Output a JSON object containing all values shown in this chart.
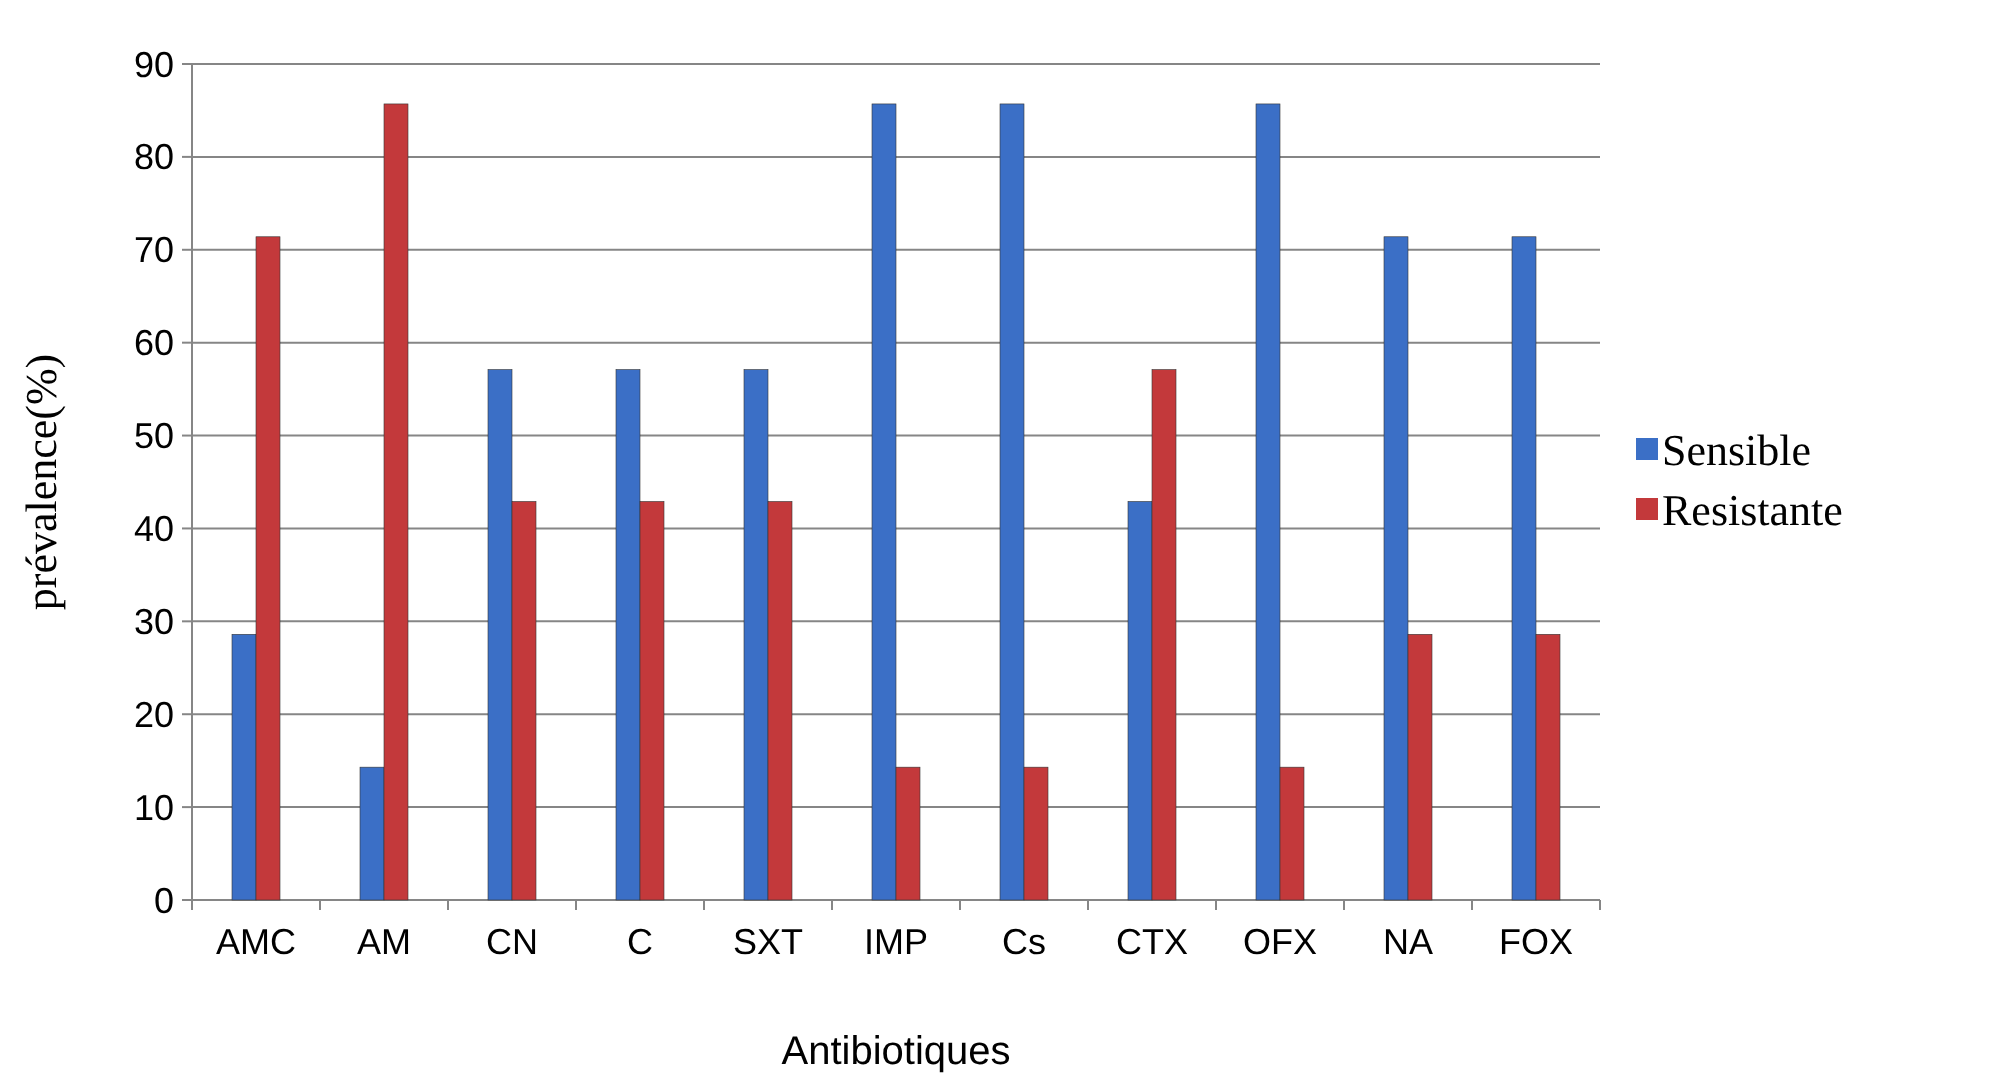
{
  "chart_data": {
    "type": "bar",
    "xlabel": "Antibiotiques",
    "ylabel": "prévalence(%)",
    "categories": [
      "AMC",
      "AM",
      "CN",
      "C",
      "SXT",
      "IMP",
      "Cs",
      "CTX",
      "OFX",
      "NA",
      "FOX"
    ],
    "series": [
      {
        "name": "Sensible",
        "color": "#3b6fc6",
        "values": [
          28.6,
          14.3,
          57.1,
          57.1,
          57.1,
          85.7,
          85.7,
          42.9,
          85.7,
          71.4,
          71.4
        ]
      },
      {
        "name": "Resistante",
        "color": "#c3393b",
        "values": [
          71.4,
          85.7,
          42.9,
          42.9,
          42.9,
          14.3,
          14.3,
          57.1,
          14.3,
          28.6,
          28.6
        ]
      }
    ],
    "ylim": [
      0,
      90
    ],
    "yticks": [
      0,
      10,
      20,
      30,
      40,
      50,
      60,
      70,
      80,
      90
    ],
    "grid": "y",
    "legend": "right"
  }
}
